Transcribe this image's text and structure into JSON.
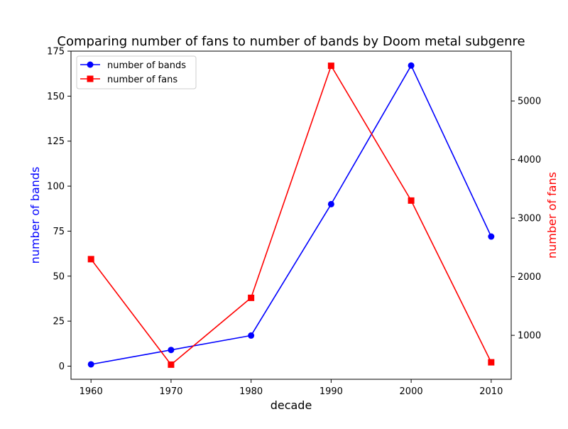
{
  "chart_data": {
    "type": "line",
    "title": "Comparing number of fans to number of bands by Doom metal subgenre",
    "xlabel": "decade",
    "ylabel_left": "number of bands",
    "ylabel_right": "number of fans",
    "x": [
      1960,
      1970,
      1980,
      1990,
      2000,
      2010
    ],
    "x_ticks": [
      1960,
      1970,
      1980,
      1990,
      2000,
      2010
    ],
    "xlim": [
      1957.5,
      2012.5
    ],
    "y_left_ticks": [
      0,
      25,
      50,
      75,
      100,
      125,
      150,
      175
    ],
    "ylim_left": [
      -7.3,
      175
    ],
    "y_right_ticks": [
      1000,
      2000,
      3000,
      4000,
      5000
    ],
    "ylim_right": [
      250,
      5850
    ],
    "legend_position": "top-left",
    "grid": false,
    "series": [
      {
        "name": "number of bands",
        "axis": "left",
        "color": "#0000ff",
        "marker": "circle",
        "values": [
          1,
          9,
          17,
          90,
          167,
          72
        ]
      },
      {
        "name": "number of fans",
        "axis": "right",
        "color": "#ff0000",
        "marker": "square",
        "values": [
          2300,
          500,
          1640,
          5600,
          3300,
          540
        ]
      }
    ]
  }
}
